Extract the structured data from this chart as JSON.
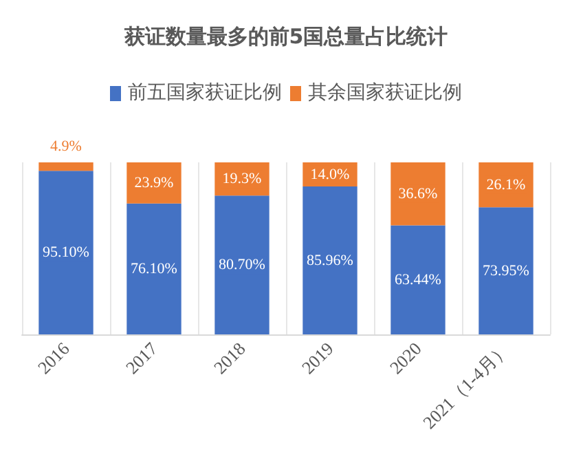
{
  "chart_data": {
    "type": "bar",
    "title": "获证数量最多的前5国总量占比统计",
    "categories": [
      "2016",
      "2017",
      "2018",
      "2019",
      "2020",
      "2021（1-4月）"
    ],
    "stacked": true,
    "ylim": [
      0,
      100
    ],
    "tick_labels": "x",
    "grid": "x",
    "legend": "top",
    "series": [
      {
        "name": "前五国家获证比例",
        "color": "#4472c4",
        "values": [
          95.1,
          76.1,
          80.7,
          85.96,
          63.44,
          73.95
        ],
        "value_labels": [
          "95.10%",
          "76.10%",
          "80.70%",
          "85.96%",
          "63.44%",
          "73.95%"
        ]
      },
      {
        "name": "其余国家获证比例",
        "color": "#ed7d31",
        "values": [
          4.9,
          23.9,
          19.3,
          14.0,
          36.6,
          26.1
        ],
        "value_labels": [
          "4.9%",
          "23.9%",
          "19.3%",
          "14.0%",
          "36.6%",
          "26.1%"
        ]
      }
    ]
  }
}
